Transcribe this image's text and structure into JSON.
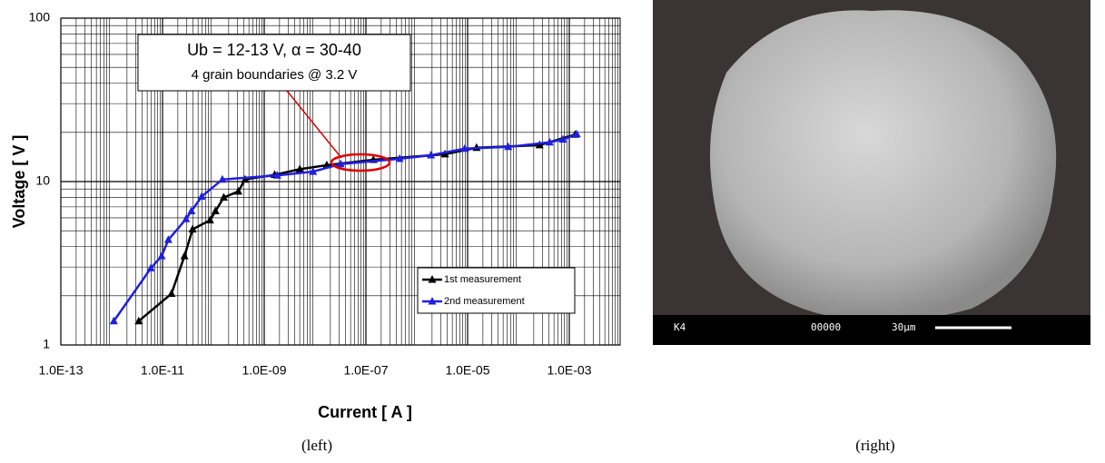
{
  "chart_data": {
    "type": "line",
    "x_label": "Current [ A ]",
    "y_label": "Voltage [ V ]",
    "xscale": "log",
    "yscale": "log",
    "grid": true,
    "legend": "lower right",
    "xlim": [
      1e-13,
      0.01
    ],
    "ylim": [
      1,
      100
    ],
    "xticks": [
      {
        "value": 1e-13,
        "label": "1.0E-13"
      },
      {
        "value": 1e-11,
        "label": "1.0E-11"
      },
      {
        "value": 1e-09,
        "label": "1.0E-09"
      },
      {
        "value": 1e-07,
        "label": "1.0E-07"
      },
      {
        "value": 1e-05,
        "label": "1.0E-05"
      },
      {
        "value": 0.001,
        "label": "1.0E-03"
      }
    ],
    "yticks": [
      1,
      10,
      100
    ],
    "annotations": [
      "Ub = 12-13 V, α = 30-40",
      "4 grain boundaries @ 3.2 V"
    ],
    "series": [
      {
        "name": "1st measurement",
        "color": "#000000",
        "x": [
          3.4e-12,
          1.5e-11,
          2.7e-11,
          3.9e-11,
          8.6e-11,
          1.1e-10,
          1.6e-10,
          3.1e-10,
          4.2e-10,
          1.6e-09,
          5e-09,
          1.7e-08,
          1.4e-07,
          3.6e-06,
          1.5e-05,
          0.00026,
          0.0013
        ],
        "values": [
          1.4,
          2.06,
          3.5,
          5.1,
          5.8,
          6.6,
          8.0,
          8.7,
          10.3,
          11.0,
          11.9,
          12.6,
          13.6,
          14.7,
          16.1,
          16.7,
          19.4
        ]
      },
      {
        "name": "2nd measurement",
        "color": "#1f1fe0",
        "x": [
          1.1e-12,
          5.9e-12,
          9.6e-12,
          1.3e-11,
          2.9e-11,
          3.7e-11,
          5.9e-11,
          1.5e-10,
          1.8e-09,
          9.1e-09,
          3.2e-08,
          4.6e-07,
          1.9e-06,
          8.8e-06,
          6.3e-05,
          0.00041,
          0.00075,
          0.0014
        ],
        "values": [
          1.4,
          2.95,
          3.5,
          4.4,
          5.9,
          6.6,
          8.1,
          10.3,
          10.9,
          11.5,
          12.8,
          13.8,
          14.5,
          15.9,
          16.3,
          17.4,
          18.1,
          19.5
        ]
      }
    ]
  },
  "photo": {
    "labels": [
      "K4",
      "00000",
      "30μm"
    ]
  },
  "captions": {
    "left": "(left)",
    "right": "(right)"
  }
}
